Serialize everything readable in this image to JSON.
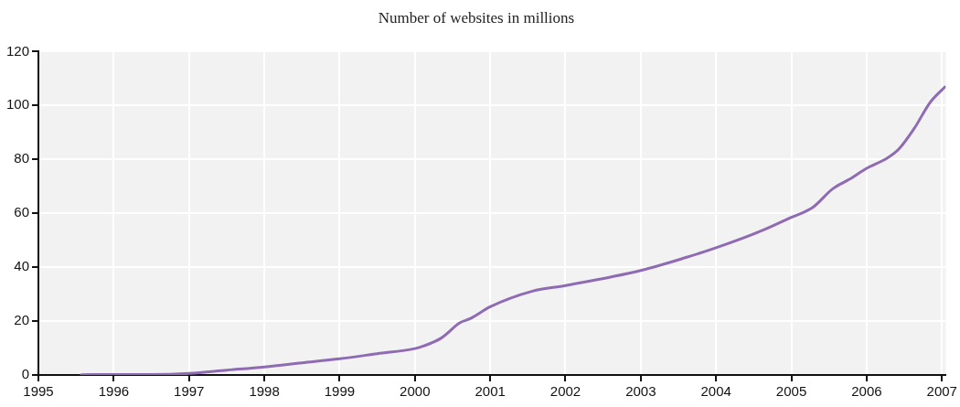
{
  "chart_data": {
    "type": "line",
    "title": "Number of websites in millions",
    "x": [
      1995.57,
      1996,
      1996.5,
      1997,
      1997.5,
      1998,
      1998.5,
      1999,
      1999.5,
      2000,
      2000.12,
      2000.35,
      2000.6,
      2000.74,
      2001,
      2001.56,
      2002,
      2003,
      2003.6,
      2004,
      2004.63,
      2005,
      2005.28,
      2005.55,
      2005.77,
      2006,
      2006.28,
      2006.43,
      2006.63,
      2006.84,
      2007.04
    ],
    "series": [
      {
        "color": "#8e6bb3",
        "values": [
          0.1,
          0.2,
          0.2,
          0.6,
          1.8,
          3.0,
          4.5,
          6.0,
          7.9,
          9.8,
          10.8,
          13.7,
          19.4,
          21,
          25.3,
          31.1,
          33.2,
          38.8,
          43.6,
          47.2,
          53.8,
          58.5,
          62.1,
          69.1,
          72.6,
          76.7,
          80.6,
          83.9,
          91.4,
          101,
          106.9
        ]
      }
    ],
    "xlim": [
      1995,
      2007.05
    ],
    "xticks": [
      1995,
      1996,
      1997,
      1998,
      1999,
      2000,
      2001,
      2002,
      2003,
      2004,
      2005,
      2006,
      2007
    ],
    "ylim": [
      0,
      120
    ],
    "yticks": [
      0,
      20,
      40,
      60,
      80,
      100,
      120
    ],
    "grid": true,
    "legend": false,
    "marker": "none",
    "line_style": "solid"
  }
}
